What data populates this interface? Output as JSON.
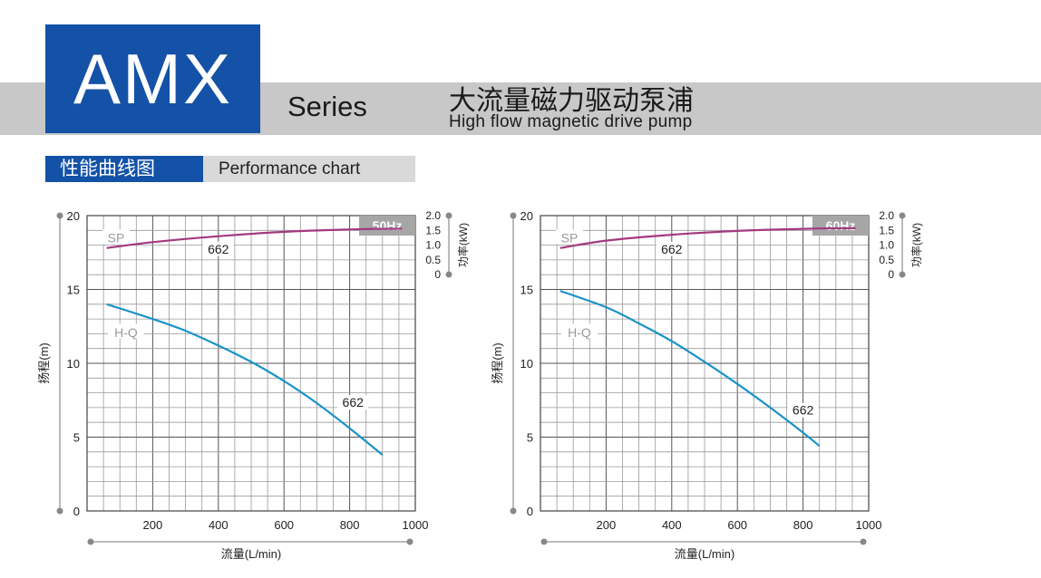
{
  "header": {
    "logo": "AMX",
    "series": "Series",
    "title_cn": "大流量磁力驱动泵浦",
    "title_en": "High flow magnetic drive pump"
  },
  "section": {
    "title_cn": "性能曲线图",
    "title_en": "Performance chart"
  },
  "colors": {
    "brand_blue": "#1352a7",
    "band_gray": "#c8c8c8",
    "hq_curve": "#1a93c9",
    "sp_curve": "#a3397f",
    "hz_badge": "#a6a6a6"
  },
  "chart_data": [
    {
      "type": "line",
      "badge": "50Hz",
      "xlabel": "流量(L/min)",
      "ylabel": "扬程(m)",
      "y2label": "功率(kW)",
      "xlim": [
        0,
        1000
      ],
      "ylim": [
        0,
        20
      ],
      "y2lim": [
        0,
        2.0
      ],
      "x_ticks": [
        "200",
        "400",
        "600",
        "800",
        "1000"
      ],
      "y_ticks": [
        "0",
        "5",
        "10",
        "15",
        "20"
      ],
      "y2_ticks": [
        "0",
        "0.5",
        "1.0",
        "1.5",
        "2.0"
      ],
      "grid": true,
      "curve_tags": [
        "SP",
        "H-Q"
      ],
      "series": [
        {
          "name": "662",
          "kind": "H-Q",
          "axis": "left",
          "x": [
            60,
            200,
            300,
            400,
            500,
            600,
            700,
            800,
            900
          ],
          "y": [
            14.0,
            13.0,
            12.2,
            11.2,
            10.1,
            8.8,
            7.3,
            5.6,
            3.8
          ]
        },
        {
          "name": "662",
          "kind": "SP",
          "axis": "right",
          "x": [
            60,
            200,
            400,
            600,
            800,
            900,
            960
          ],
          "y": [
            0.9,
            1.1,
            1.3,
            1.45,
            1.53,
            1.55,
            1.55
          ]
        }
      ]
    },
    {
      "type": "line",
      "badge": "60Hz",
      "xlabel": "流量(L/min)",
      "ylabel": "扬程(m)",
      "y2label": "功率(kW)",
      "xlim": [
        0,
        1000
      ],
      "ylim": [
        0,
        20
      ],
      "y2lim": [
        0,
        2.0
      ],
      "x_ticks": [
        "200",
        "400",
        "600",
        "800",
        "1000"
      ],
      "y_ticks": [
        "0",
        "5",
        "10",
        "15",
        "20"
      ],
      "y2_ticks": [
        "0",
        "0.5",
        "1.0",
        "1.5",
        "2.0"
      ],
      "grid": true,
      "curve_tags": [
        "SP",
        "H-Q"
      ],
      "series": [
        {
          "name": "662",
          "kind": "H-Q",
          "axis": "left",
          "x": [
            60,
            200,
            300,
            400,
            500,
            600,
            700,
            800,
            850
          ],
          "y": [
            14.9,
            13.8,
            12.7,
            11.5,
            10.1,
            8.6,
            7.0,
            5.3,
            4.4
          ]
        },
        {
          "name": "662",
          "kind": "SP",
          "axis": "right",
          "x": [
            60,
            200,
            400,
            600,
            800,
            900,
            960
          ],
          "y": [
            0.9,
            1.15,
            1.35,
            1.48,
            1.55,
            1.57,
            1.57
          ]
        }
      ]
    }
  ]
}
